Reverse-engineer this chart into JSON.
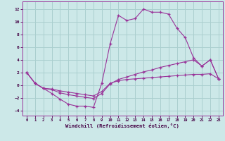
{
  "xlabel": "Windchill (Refroidissement éolien,°C)",
  "xlim": [
    -0.5,
    23.5
  ],
  "ylim": [
    -4.8,
    13.2
  ],
  "yticks": [
    -4,
    -2,
    0,
    2,
    4,
    6,
    8,
    10,
    12
  ],
  "xticks": [
    0,
    1,
    2,
    3,
    4,
    5,
    6,
    7,
    8,
    9,
    10,
    11,
    12,
    13,
    14,
    15,
    16,
    17,
    18,
    19,
    20,
    21,
    22,
    23
  ],
  "bg_color": "#cce8e8",
  "grid_color": "#aacfcf",
  "line_color": "#993399",
  "line1_x": [
    0,
    1,
    2,
    3,
    4,
    5,
    6,
    7,
    8,
    9,
    10,
    11,
    12,
    13,
    14,
    15,
    16,
    17,
    18,
    19,
    20,
    21,
    22,
    23
  ],
  "line1_y": [
    2,
    0.3,
    -0.5,
    -1.3,
    -2.2,
    -3.0,
    -3.3,
    -3.3,
    -3.5,
    0.3,
    6.5,
    11.0,
    10.2,
    10.5,
    12.0,
    11.5,
    11.5,
    11.2,
    9.0,
    7.5,
    4.3,
    3.0,
    4.0,
    1.0
  ],
  "line2_x": [
    0,
    1,
    2,
    3,
    4,
    5,
    6,
    7,
    8,
    9,
    10,
    11,
    12,
    13,
    14,
    15,
    16,
    17,
    18,
    19,
    20,
    21,
    22,
    23
  ],
  "line2_y": [
    2,
    0.3,
    -0.5,
    -0.7,
    -1.2,
    -1.5,
    -1.7,
    -1.9,
    -2.1,
    -1.3,
    0.2,
    0.9,
    1.3,
    1.7,
    2.1,
    2.4,
    2.8,
    3.1,
    3.4,
    3.7,
    4.0,
    3.0,
    4.0,
    1.0
  ],
  "line3_x": [
    0,
    1,
    2,
    3,
    4,
    5,
    6,
    7,
    8,
    9,
    10,
    11,
    12,
    13,
    14,
    15,
    16,
    17,
    18,
    19,
    20,
    21,
    22,
    23
  ],
  "line3_y": [
    2,
    0.3,
    -0.5,
    -0.6,
    -0.9,
    -1.1,
    -1.3,
    -1.5,
    -1.7,
    -1.0,
    0.3,
    0.7,
    0.9,
    1.0,
    1.1,
    1.2,
    1.3,
    1.4,
    1.5,
    1.6,
    1.7,
    1.7,
    1.8,
    1.0
  ]
}
